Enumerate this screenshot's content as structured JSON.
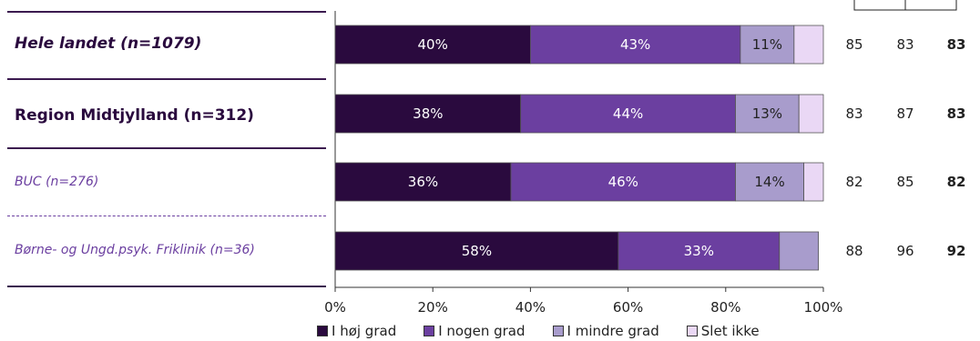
{
  "chart_data": {
    "type": "bar",
    "orientation": "horizontal",
    "stacked": true,
    "categories": [
      "Hele landet (n=1079)",
      "Region Midtjylland (n=312)",
      "BUC (n=276)",
      "Børne- og Ungd.psyk. Friklinik (n=36)"
    ],
    "series": [
      {
        "name": "I høj grad",
        "color": "#2a0a3e",
        "values": [
          40,
          38,
          36,
          58
        ]
      },
      {
        "name": "I nogen grad",
        "color": "#6b3fa0",
        "values": [
          43,
          44,
          46,
          33
        ]
      },
      {
        "name": "I mindre grad",
        "color": "#a89ccc",
        "values": [
          11,
          13,
          14,
          8
        ]
      },
      {
        "name": "Slet ikke",
        "color": "#ead8f5",
        "values": [
          6,
          5,
          4,
          0
        ]
      }
    ],
    "data_labels": [
      [
        "40%",
        "43%",
        "11%",
        ""
      ],
      [
        "38%",
        "44%",
        "13%",
        ""
      ],
      [
        "36%",
        "46%",
        "14%",
        ""
      ],
      [
        "58%",
        "33%",
        "",
        ""
      ]
    ],
    "xlim": [
      0,
      100
    ],
    "x_ticks": [
      "0%",
      "20%",
      "40%",
      "60%",
      "80%",
      "100%"
    ],
    "legend_position": "bottom",
    "scores": [
      [
        "85",
        "83",
        "83"
      ],
      [
        "83",
        "87",
        "83"
      ],
      [
        "82",
        "85",
        "82"
      ],
      [
        "88",
        "96",
        "92"
      ]
    ]
  }
}
